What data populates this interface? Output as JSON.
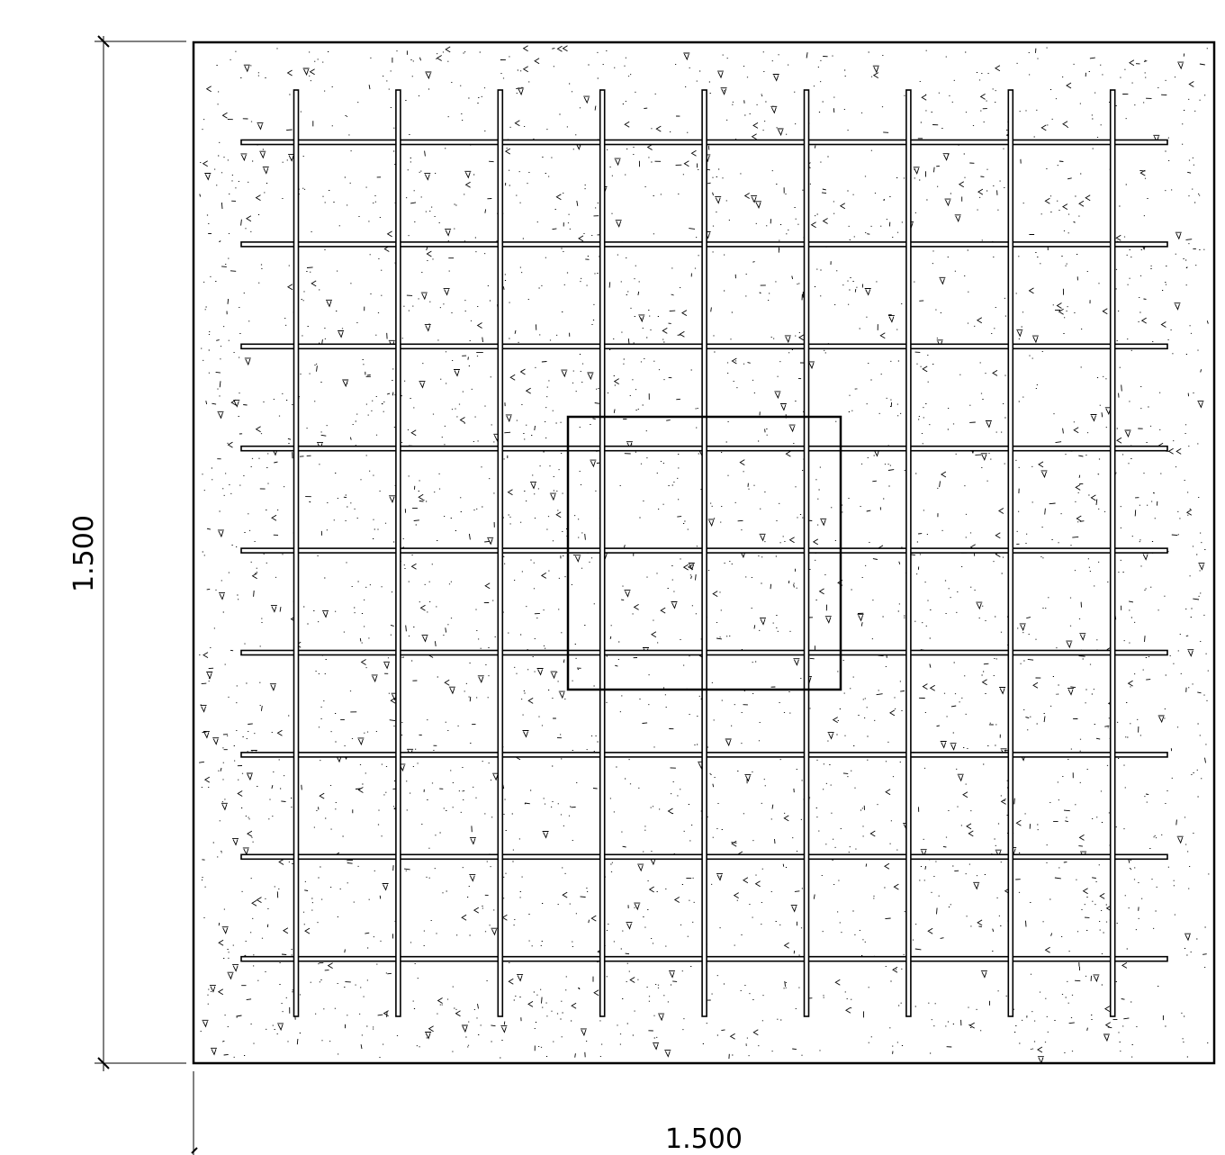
{
  "drawing": {
    "dimension_width": "1.500",
    "dimension_height": "1.500",
    "rebar_grid": {
      "vertical_bars": 9,
      "horizontal_bars": 9
    },
    "colors": {
      "line": "#000000",
      "background": "#ffffff",
      "bar_fill": "#ffffff"
    }
  }
}
